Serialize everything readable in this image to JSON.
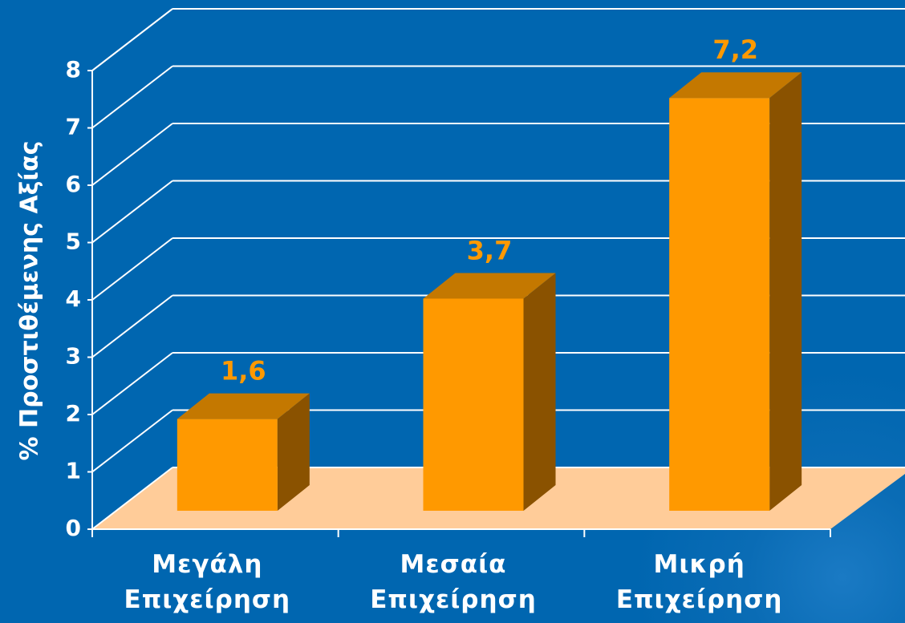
{
  "chart_data": {
    "type": "bar3d",
    "y_label": "% Προστιθέμενης Αξίας",
    "categories": [
      "Μεγάλη Επιχείρηση",
      "Μεσαία Επιχείρηση",
      "Μικρή Επιχείρηση"
    ],
    "values": [
      1.6,
      3.7,
      7.2
    ],
    "value_labels": [
      "1,6",
      "3,7",
      "7,2"
    ],
    "color": "#ff9900",
    "ylim": [
      0,
      8
    ],
    "yticks": [
      0,
      1,
      2,
      3,
      4,
      5,
      6,
      7,
      8
    ],
    "grid": true
  }
}
